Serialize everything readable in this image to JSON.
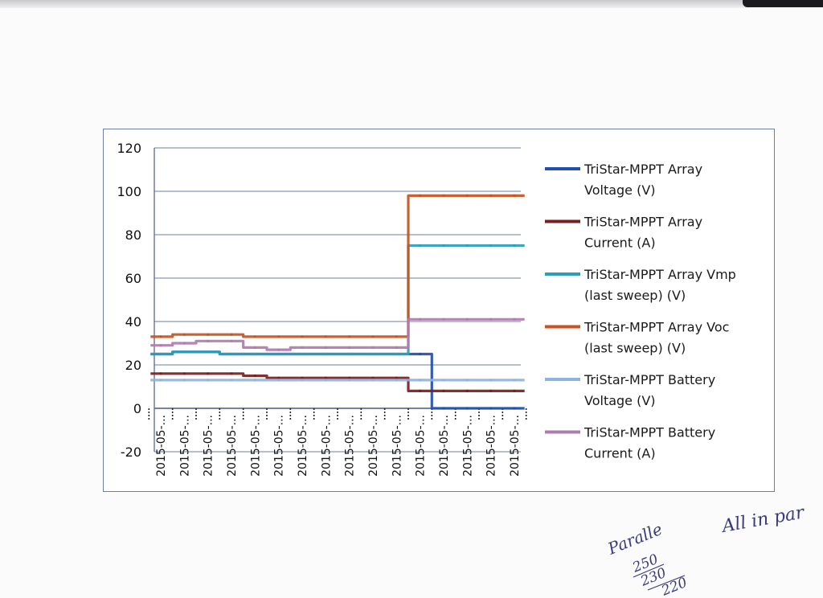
{
  "chart_data": {
    "type": "line",
    "title": "",
    "xlabel": "",
    "ylabel": "",
    "ylim": [
      -20,
      120
    ],
    "yticks": [
      -20,
      0,
      20,
      40,
      60,
      80,
      100,
      120
    ],
    "grid": true,
    "legend_position": "right",
    "x": [
      "2015-05-...",
      "2015-05-...",
      "2015-05-...",
      "2015-05-...",
      "2015-05-...",
      "2015-05-...",
      "2015-05-...",
      "2015-05-...",
      "2015-05-...",
      "2015-05-...",
      "2015-05-...",
      "2015-05-...",
      "2015-05-...",
      "2015-05-...",
      "2015-05-...",
      "2015-05-..."
    ],
    "series": [
      {
        "name": "TriStar-MPPT Array Voltage (V)",
        "color": "#1f4fb0",
        "values": [
          25,
          26,
          26,
          25,
          25,
          25,
          25,
          25,
          25,
          25,
          25,
          25,
          0,
          0,
          0,
          0
        ]
      },
      {
        "name": "TriStar-MPPT Array Current (A)",
        "color": "#7a1e1e",
        "values": [
          16,
          16,
          16,
          16,
          15,
          14,
          14,
          14,
          14,
          14,
          14,
          8,
          8,
          8,
          8,
          8
        ]
      },
      {
        "name": "TriStar-MPPT Array Vmp (last sweep) (V)",
        "color": "#2aa0b8",
        "values": [
          25,
          26,
          26,
          25,
          25,
          25,
          25,
          25,
          25,
          25,
          25,
          75,
          75,
          75,
          75,
          75
        ]
      },
      {
        "name": "TriStar-MPPT Array Voc (last sweep) (V)",
        "color": "#c9521e",
        "values": [
          33,
          34,
          34,
          34,
          33,
          33,
          33,
          33,
          33,
          33,
          33,
          98,
          98,
          98,
          98,
          98
        ]
      },
      {
        "name": "TriStar-MPPT Battery Voltage (V)",
        "color": "#8fb3e0",
        "values": [
          13,
          13,
          13,
          13,
          13,
          13,
          13,
          13,
          13,
          13,
          13,
          13,
          13,
          13,
          13,
          13
        ]
      },
      {
        "name": "TriStar-MPPT Battery Current (A)",
        "color": "#b07bb0",
        "values": [
          29,
          30,
          31,
          31,
          28,
          27,
          28,
          28,
          28,
          28,
          28,
          41,
          41,
          41,
          41,
          41
        ]
      }
    ]
  },
  "legend": [
    {
      "line1": "TriStar-MPPT Array",
      "line2": "Voltage (V)",
      "color": "#1f4fb0"
    },
    {
      "line1": "TriStar-MPPT Array",
      "line2": "Current (A)",
      "color": "#7a1e1e"
    },
    {
      "line1": "TriStar-MPPT Array Vmp",
      "line2": "(last sweep) (V)",
      "color": "#2aa0b8"
    },
    {
      "line1": "TriStar-MPPT Array Voc",
      "line2": "(last sweep) (V)",
      "color": "#c9521e"
    },
    {
      "line1": "TriStar-MPPT Battery",
      "line2": "Voltage (V)",
      "color": "#8fb3e0"
    },
    {
      "line1": "TriStar-MPPT Battery",
      "line2": "Current (A)",
      "color": "#b07bb0"
    }
  ],
  "handwriting": {
    "note1": "Paralle",
    "fraction1": "250",
    "fraction2": "230",
    "fraction3": "220",
    "note2": "All in par"
  }
}
